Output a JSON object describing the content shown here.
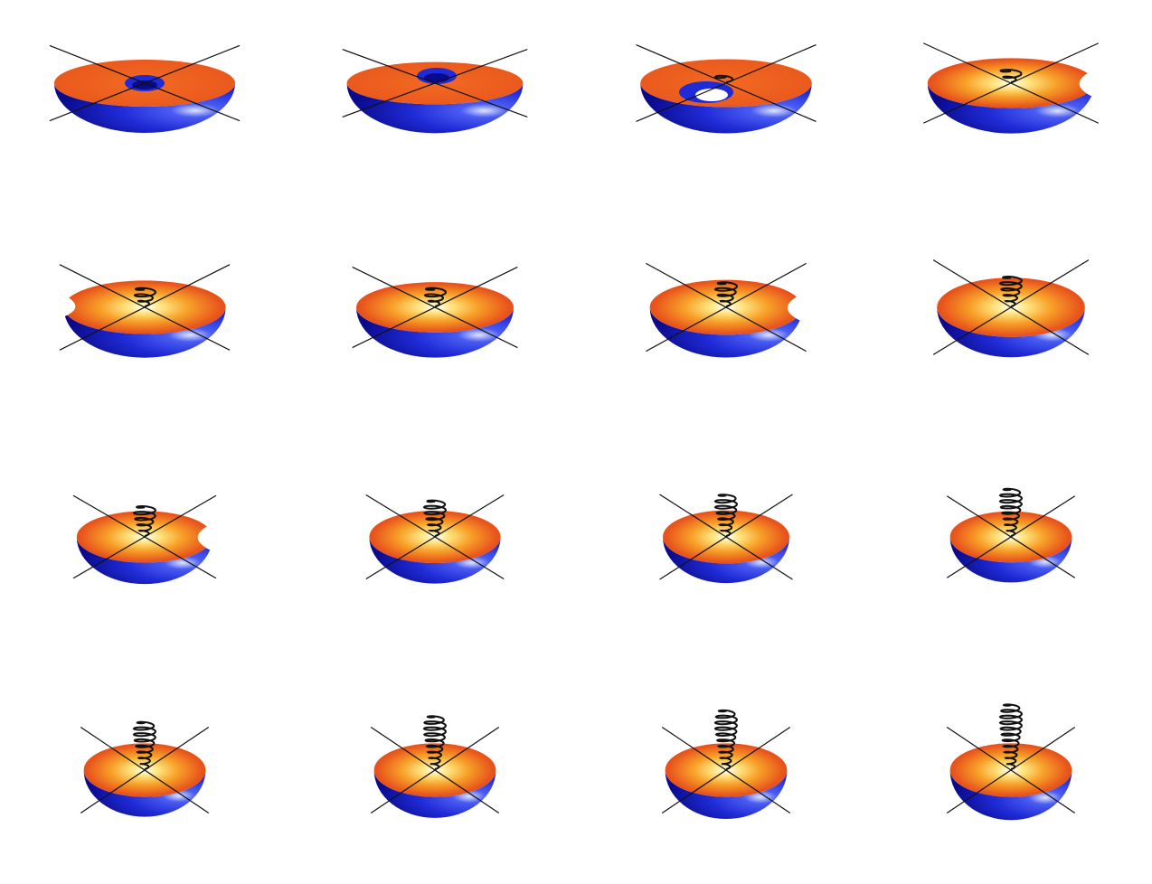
{
  "figure": {
    "layout": {
      "rows": 4,
      "columns": 4
    },
    "colors": {
      "background": "#ffffff",
      "hemisphere_dark": "#0a0a8c",
      "hemisphere_mid": "#1f2bd6",
      "hemisphere_light": "#dfe6ff",
      "disk_outer": "#e8561c",
      "disk_mid": "#f7a028",
      "disk_core": "#ffffee",
      "lines": "#111111"
    },
    "frames": [
      {
        "frame": 1,
        "helix_turns": 0,
        "disk_flatness": 0.26,
        "hole": "center"
      },
      {
        "frame": 2,
        "helix_turns": 0,
        "disk_flatness": 0.24,
        "hole": "center-offset"
      },
      {
        "frame": 3,
        "helix_turns": 1,
        "disk_flatness": 0.28,
        "hole": "notch-front"
      },
      {
        "frame": 4,
        "helix_turns": 2,
        "disk_flatness": 0.3,
        "hole": "notch-right"
      },
      {
        "frame": 5,
        "helix_turns": 3,
        "disk_flatness": 0.33,
        "hole": "notch-left"
      },
      {
        "frame": 6,
        "helix_turns": 3,
        "disk_flatness": 0.32,
        "hole": "none"
      },
      {
        "frame": 7,
        "helix_turns": 4,
        "disk_flatness": 0.36,
        "hole": "notch-right"
      },
      {
        "frame": 8,
        "helix_turns": 5,
        "disk_flatness": 0.4,
        "hole": "none"
      },
      {
        "frame": 9,
        "helix_turns": 5,
        "disk_flatness": 0.38,
        "hole": "notch-right"
      },
      {
        "frame": 10,
        "helix_turns": 6,
        "disk_flatness": 0.4,
        "hole": "none"
      },
      {
        "frame": 11,
        "helix_turns": 7,
        "disk_flatness": 0.42,
        "hole": "none"
      },
      {
        "frame": 12,
        "helix_turns": 8,
        "disk_flatness": 0.42,
        "hole": "none"
      },
      {
        "frame": 13,
        "helix_turns": 8,
        "disk_flatness": 0.44,
        "hole": "none"
      },
      {
        "frame": 14,
        "helix_turns": 9,
        "disk_flatness": 0.44,
        "hole": "none"
      },
      {
        "frame": 15,
        "helix_turns": 10,
        "disk_flatness": 0.44,
        "hole": "none"
      },
      {
        "frame": 16,
        "helix_turns": 11,
        "disk_flatness": 0.44,
        "hole": "none"
      }
    ]
  }
}
